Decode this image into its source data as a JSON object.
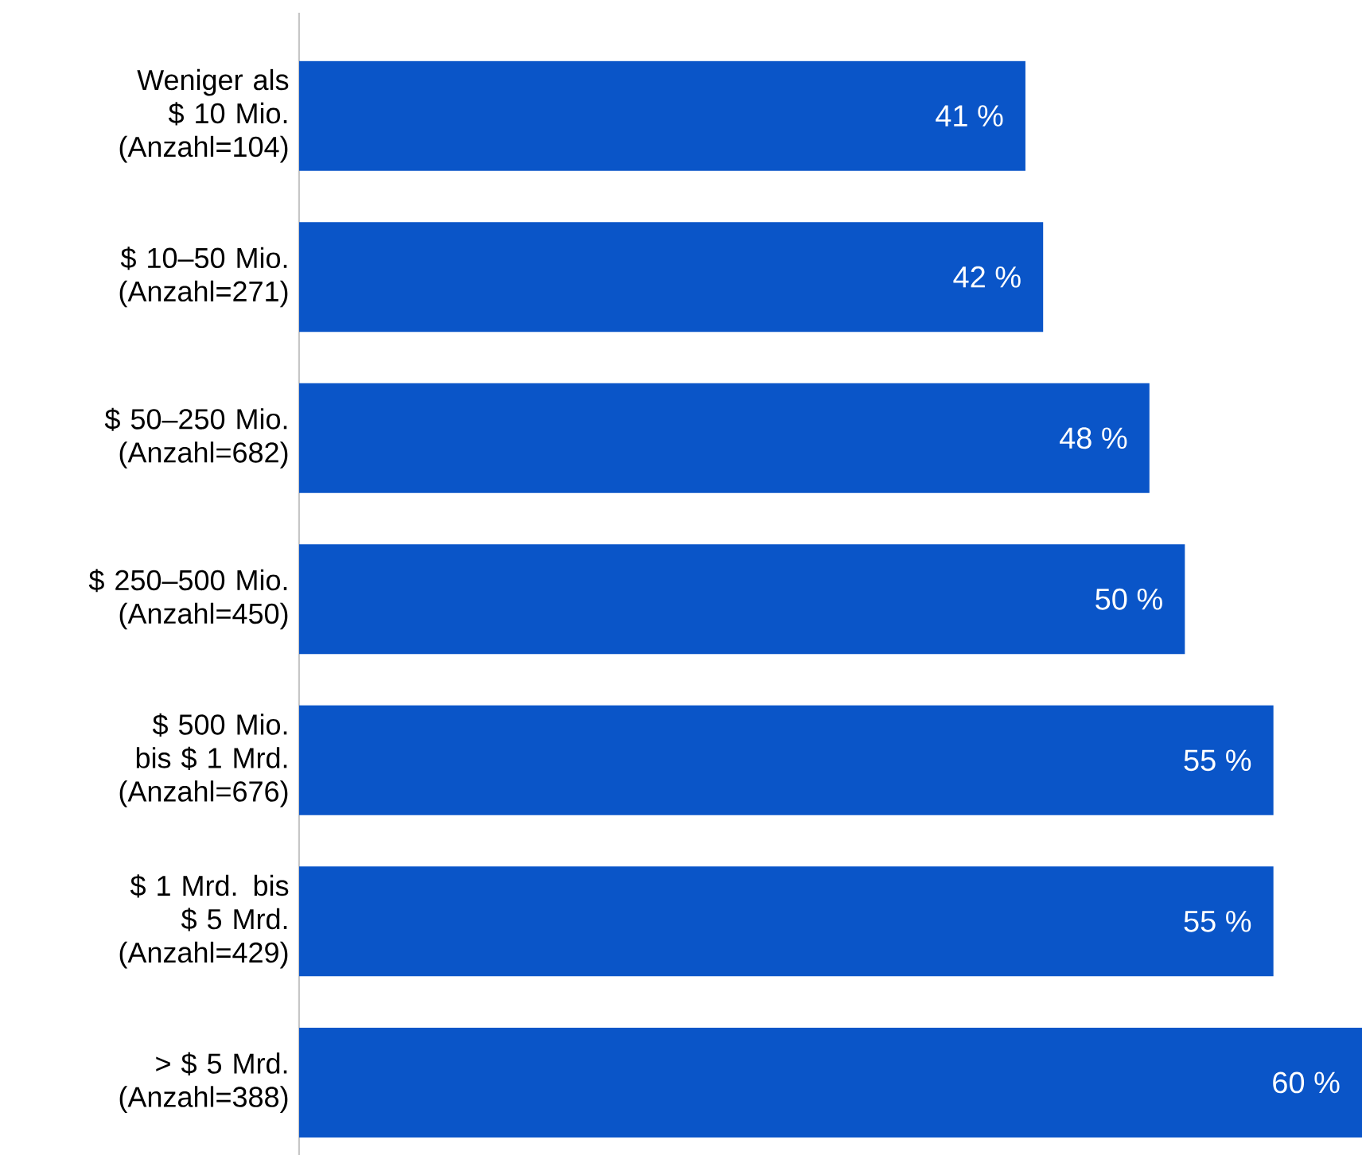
{
  "chart_data": {
    "type": "bar",
    "orientation": "horizontal",
    "categories": [
      "Weniger als $ 10 Mio. (Anzahl=104)",
      "$ 10–50 Mio. (Anzahl=271)",
      "$ 50–250 Mio. (Anzahl=682)",
      "$ 250–500 Mio. (Anzahl=450)",
      "$ 500 Mio. bis $ 1 Mrd. (Anzahl=676)",
      "$ 1 Mrd. bis $ 5 Mrd. (Anzahl=429)",
      "> $ 5 Mrd. (Anzahl=388)"
    ],
    "values": [
      41,
      42,
      48,
      50,
      55,
      55,
      60
    ],
    "value_labels": [
      "41 %",
      "42 %",
      "48 %",
      "50 %",
      "55 %",
      "55 %",
      "60 %"
    ],
    "color": "#0a55c8"
  }
}
